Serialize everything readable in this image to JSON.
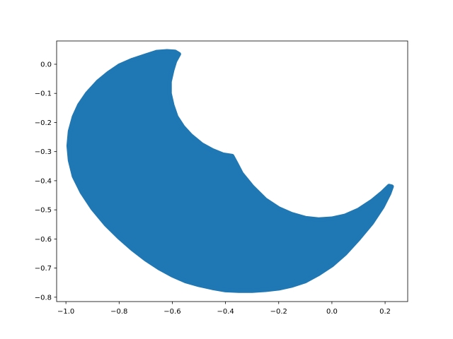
{
  "chart_data": {
    "type": "scatter",
    "title": "",
    "xlabel": "",
    "ylabel": "",
    "xlim": [
      -1.035,
      0.285
    ],
    "ylim": [
      -0.815,
      0.08
    ],
    "xticks": [
      -1.0,
      -0.8,
      -0.6,
      -0.4,
      -0.2,
      0.0,
      0.2
    ],
    "xtick_labels": [
      "−1.0",
      "−0.8",
      "−0.6",
      "−0.4",
      "−0.2",
      "0.0",
      "0.2"
    ],
    "yticks": [
      0.0,
      -0.1,
      -0.2,
      -0.3,
      -0.4,
      -0.5,
      -0.6,
      -0.7,
      -0.8
    ],
    "ytick_labels": [
      "0.0",
      "−0.1",
      "−0.2",
      "−0.3",
      "−0.4",
      "−0.5",
      "−0.6",
      "−0.7",
      "−0.8"
    ],
    "grid": false,
    "legend": "none",
    "series": [
      {
        "color": "#1f77b4",
        "marker": "filled circle",
        "region_outline": [
          [
            -0.575,
            0.035
          ],
          [
            -0.59,
            0.01
          ],
          [
            -0.6,
            -0.02
          ],
          [
            -0.61,
            -0.06
          ],
          [
            -0.61,
            -0.1
          ],
          [
            -0.6,
            -0.14
          ],
          [
            -0.585,
            -0.18
          ],
          [
            -0.56,
            -0.215
          ],
          [
            -0.53,
            -0.245
          ],
          [
            -0.49,
            -0.275
          ],
          [
            -0.45,
            -0.295
          ],
          [
            -0.41,
            -0.31
          ],
          [
            -0.375,
            -0.315
          ],
          [
            -0.36,
            -0.34
          ],
          [
            -0.34,
            -0.375
          ],
          [
            -0.3,
            -0.42
          ],
          [
            -0.25,
            -0.465
          ],
          [
            -0.2,
            -0.495
          ],
          [
            -0.15,
            -0.515
          ],
          [
            -0.1,
            -0.528
          ],
          [
            -0.05,
            -0.533
          ],
          [
            0.0,
            -0.53
          ],
          [
            0.05,
            -0.52
          ],
          [
            0.1,
            -0.5
          ],
          [
            0.15,
            -0.47
          ],
          [
            0.19,
            -0.44
          ],
          [
            0.215,
            -0.418
          ],
          [
            0.225,
            -0.42
          ],
          [
            0.215,
            -0.445
          ],
          [
            0.19,
            -0.49
          ],
          [
            0.15,
            -0.545
          ],
          [
            0.1,
            -0.6
          ],
          [
            0.05,
            -0.65
          ],
          [
            0.0,
            -0.69
          ],
          [
            -0.05,
            -0.72
          ],
          [
            -0.1,
            -0.745
          ],
          [
            -0.15,
            -0.76
          ],
          [
            -0.2,
            -0.77
          ],
          [
            -0.25,
            -0.775
          ],
          [
            -0.3,
            -0.778
          ],
          [
            -0.35,
            -0.778
          ],
          [
            -0.4,
            -0.776
          ],
          [
            -0.45,
            -0.768
          ],
          [
            -0.5,
            -0.758
          ],
          [
            -0.55,
            -0.745
          ],
          [
            -0.6,
            -0.725
          ],
          [
            -0.65,
            -0.7
          ],
          [
            -0.7,
            -0.67
          ],
          [
            -0.75,
            -0.635
          ],
          [
            -0.8,
            -0.595
          ],
          [
            -0.85,
            -0.55
          ],
          [
            -0.9,
            -0.495
          ],
          [
            -0.94,
            -0.44
          ],
          [
            -0.97,
            -0.385
          ],
          [
            -0.985,
            -0.33
          ],
          [
            -0.99,
            -0.28
          ],
          [
            -0.985,
            -0.23
          ],
          [
            -0.97,
            -0.18
          ],
          [
            -0.95,
            -0.14
          ],
          [
            -0.92,
            -0.1
          ],
          [
            -0.88,
            -0.06
          ],
          [
            -0.84,
            -0.03
          ],
          [
            -0.8,
            -0.005
          ],
          [
            -0.75,
            0.015
          ],
          [
            -0.7,
            0.03
          ],
          [
            -0.66,
            0.042
          ],
          [
            -0.62,
            0.045
          ],
          [
            -0.59,
            0.043
          ]
        ]
      }
    ]
  }
}
